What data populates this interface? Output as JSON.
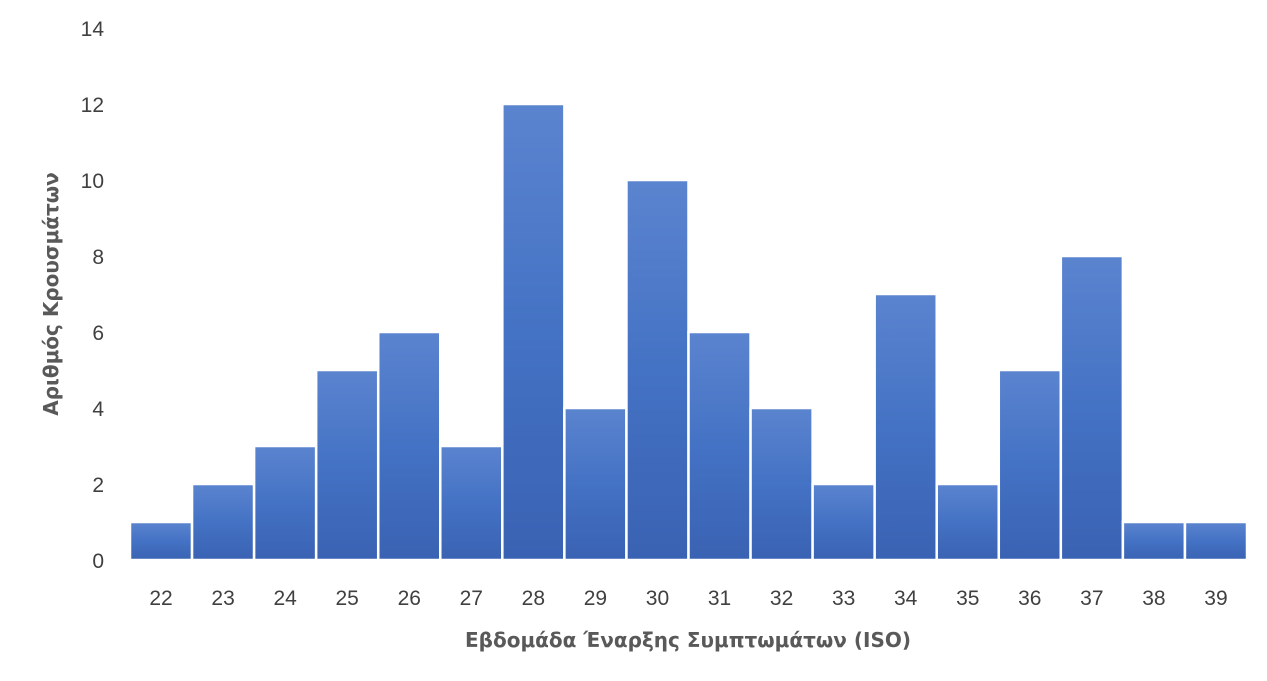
{
  "chart_data": {
    "type": "bar",
    "title": "",
    "xlabel": "Εβδομάδα Έναρξης Συμπτωμάτων (ISO)",
    "ylabel": "Αριθμός Κρουσμάτων",
    "categories": [
      "22",
      "23",
      "24",
      "25",
      "26",
      "27",
      "28",
      "29",
      "30",
      "31",
      "32",
      "33",
      "34",
      "35",
      "36",
      "37",
      "38",
      "39"
    ],
    "values": [
      1,
      2,
      3,
      5,
      6,
      3,
      12,
      4,
      10,
      6,
      4,
      2,
      7,
      2,
      5,
      8,
      1,
      1
    ],
    "ylim": [
      0,
      14
    ],
    "yticks": [
      0,
      2,
      4,
      6,
      8,
      10,
      12,
      14
    ],
    "grid": false,
    "legend": "none",
    "colors": {
      "bar_top": "#5b84cf",
      "bar_mid": "#4472c4",
      "bar_bottom": "#3a62b3",
      "bar_edge": "#ffffff",
      "tick_text": "#404040",
      "axis_title": "#595959"
    }
  }
}
